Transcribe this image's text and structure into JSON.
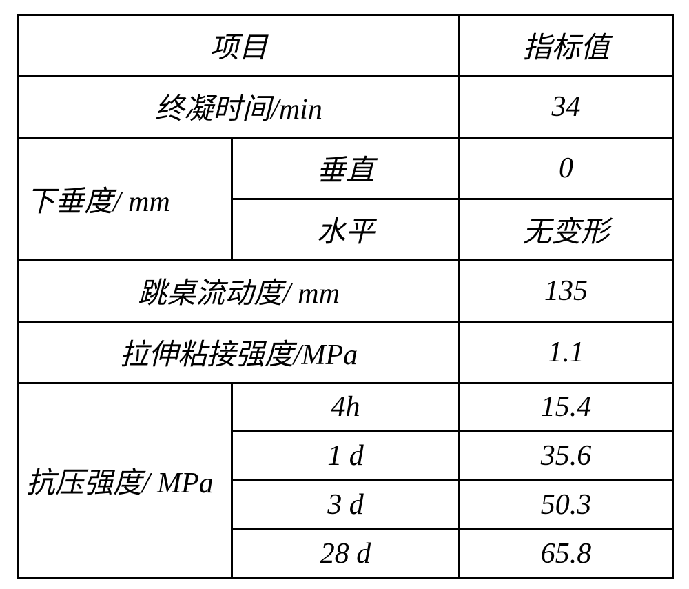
{
  "table": {
    "font_size": 42,
    "font_style": "italic",
    "border_color": "#000000",
    "border_width": 3,
    "background_color": "#ffffff",
    "text_color": "#000000",
    "columns": {
      "col1_width": 310,
      "col2_width": 330,
      "col3_width": 310
    },
    "rows": [
      {
        "type": "header",
        "item_colspan": 2,
        "item": "项目",
        "value": "指标值"
      },
      {
        "type": "simple",
        "item_colspan": 2,
        "item": "终凝时间/min",
        "value": "34"
      },
      {
        "type": "group_start",
        "label": "下垂度/ mm",
        "label_rowspan": 2,
        "sub": "垂直",
        "value": "0"
      },
      {
        "type": "group_cont",
        "sub": "水平",
        "value": "无变形"
      },
      {
        "type": "simple",
        "item_colspan": 2,
        "item": "跳桌流动度/ mm",
        "value": "135"
      },
      {
        "type": "simple",
        "item_colspan": 2,
        "item": "拉伸粘接强度/MPa",
        "value": "1.1"
      },
      {
        "type": "group_start",
        "label": "抗压强度/ MPa",
        "label_rowspan": 4,
        "sub": "4h",
        "value": "15.4"
      },
      {
        "type": "group_cont",
        "sub": "1 d",
        "value": "35.6"
      },
      {
        "type": "group_cont",
        "sub": "3 d",
        "value": "50.3"
      },
      {
        "type": "group_cont",
        "sub": "28 d",
        "value": "65.8"
      }
    ]
  }
}
